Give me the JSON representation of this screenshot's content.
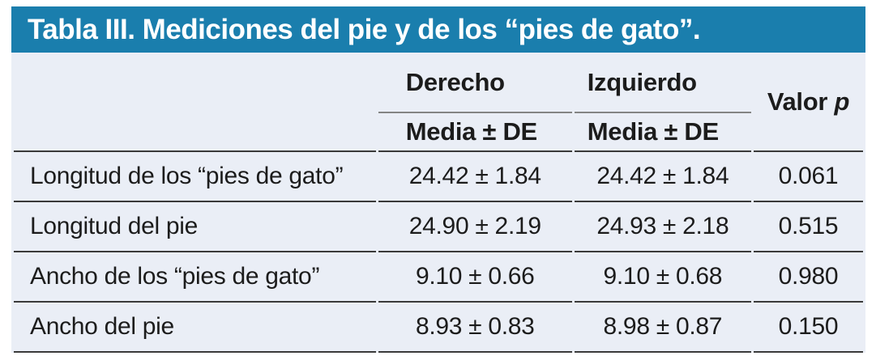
{
  "table": {
    "title": "Tabla III. Mediciones del pie y de los “pies de gato”.",
    "group_headers": {
      "right": "Derecho",
      "left": "Izquierdo"
    },
    "subheaders": {
      "right": "Media ± DE",
      "left": "Media ± DE"
    },
    "p_header": {
      "text": "Valor",
      "symbol": "p"
    },
    "rows": [
      {
        "label": "Longitud de los “pies de gato”",
        "right": "24.42 ± 1.84",
        "left": "24.42 ± 1.84",
        "p": "0.061"
      },
      {
        "label": "Longitud del pie",
        "right": "24.90 ± 2.19",
        "left": "24.93 ± 2.18",
        "p": "0.515"
      },
      {
        "label": "Ancho de los “pies de gato”",
        "right": "9.10 ± 0.66",
        "left": "9.10 ± 0.68",
        "p": "0.980"
      },
      {
        "label": "Ancho del pie",
        "right": "8.93 ± 0.83",
        "left": "8.98 ± 0.87",
        "p": "0.150"
      }
    ],
    "colors": {
      "header_bg": "#1a7ead",
      "body_bg": "#eaeef6",
      "rule_dark": "#3a3a3a",
      "rule_grey": "#848484",
      "title_text": "#ffffff",
      "body_text": "#1c1c1c"
    }
  }
}
